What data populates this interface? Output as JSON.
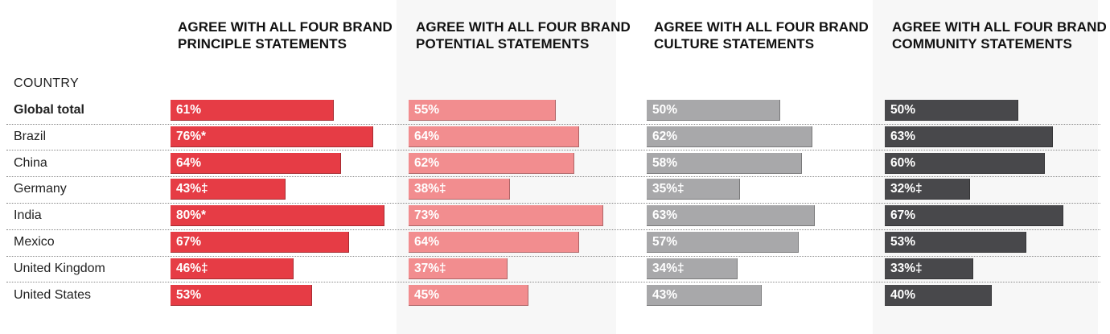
{
  "chart_data": {
    "type": "bar",
    "row_header": "COUNTRY",
    "categories": [
      "Global total",
      "Brazil",
      "China",
      "Germany",
      "India",
      "Mexico",
      "United Kingdom",
      "United States"
    ],
    "series": [
      {
        "name": "AGREE WITH ALL FOUR BRAND PRINCIPLE STATEMENTS",
        "color": "#e63c45",
        "values": [
          61,
          76,
          64,
          43,
          80,
          67,
          46,
          53
        ],
        "labels": [
          "61%",
          "76%*",
          "64%",
          "43%‡",
          "80%*",
          "67%",
          "46%‡",
          "53%"
        ]
      },
      {
        "name": "AGREE WITH ALL FOUR BRAND POTENTIAL STATEMENTS",
        "color": "#f28d8f",
        "values": [
          55,
          64,
          62,
          38,
          73,
          64,
          37,
          45
        ],
        "labels": [
          "55%",
          "64%",
          "62%",
          "38%‡",
          "73%",
          "64%",
          "37%‡",
          "45%"
        ]
      },
      {
        "name": "AGREE WITH ALL FOUR BRAND CULTURE STATEMENTS",
        "color": "#a8a8aa",
        "values": [
          50,
          62,
          58,
          35,
          63,
          57,
          34,
          43
        ],
        "labels": [
          "50%",
          "62%",
          "58%",
          "35%‡",
          "63%",
          "57%",
          "34%‡",
          "43%"
        ]
      },
      {
        "name": "AGREE WITH ALL FOUR BRAND COMMUNITY STATEMENTS",
        "color": "#48484b",
        "values": [
          50,
          63,
          60,
          32,
          67,
          53,
          33,
          40
        ],
        "labels": [
          "50%",
          "63%",
          "60%",
          "32%‡",
          "67%",
          "53%",
          "33%‡",
          "40%"
        ]
      }
    ],
    "bold_first_category": true
  }
}
